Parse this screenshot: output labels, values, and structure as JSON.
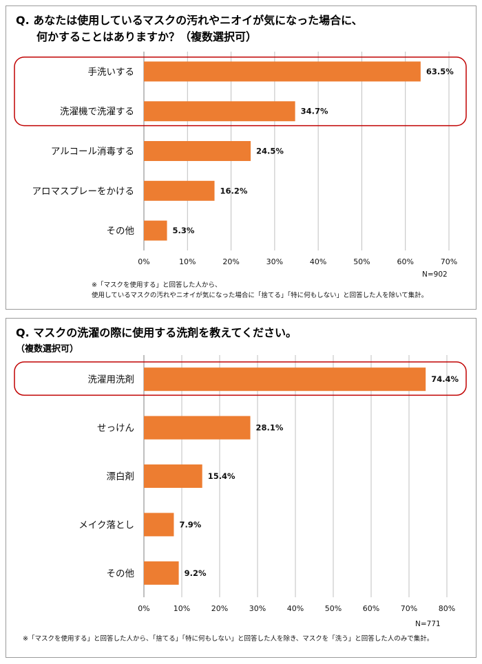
{
  "chart_data": [
    {
      "type": "bar",
      "orientation": "horizontal",
      "title_q": "Q.",
      "title_line1": "あなたは使用しているマスクの汚れやニオイが気になった場合に、",
      "title_line2": "何かすることはありますか？（複数選択可）",
      "categories": [
        "手洗いする",
        "洗濯機で洗濯する",
        "アルコール消毒する",
        "アロマスプレーをかける",
        "その他"
      ],
      "values": [
        63.5,
        34.7,
        24.5,
        16.2,
        5.3
      ],
      "value_labels": [
        "63.5%",
        "34.7%",
        "24.5%",
        "16.2%",
        "5.3%"
      ],
      "xticks": [
        "0%",
        "10%",
        "20%",
        "30%",
        "40%",
        "50%",
        "60%",
        "70%"
      ],
      "xlim": [
        0,
        70
      ],
      "highlighted_categories": [
        "手洗いする",
        "洗濯機で洗濯する"
      ],
      "n_label": "N=902",
      "note_line1": "※「マスクを使用する」と回答した人から、",
      "note_line2": "使用しているマスクの汚れやニオイが気になった場合に「捨てる」「特に何もしない」と回答した人を除いて集計。",
      "grid": true
    },
    {
      "type": "bar",
      "orientation": "horizontal",
      "title_q": "Q.",
      "title_line1": "マスクの洗濯の際に使用する洗剤を教えてください。",
      "title_line2": "（複数選択可）",
      "categories": [
        "洗濯用洗剤",
        "せっけん",
        "漂白剤",
        "メイク落とし",
        "その他"
      ],
      "values": [
        74.4,
        28.1,
        15.4,
        7.9,
        9.2
      ],
      "value_labels": [
        "74.4%",
        "28.1%",
        "15.4%",
        "7.9%",
        "9.2%"
      ],
      "xticks": [
        "0%",
        "10%",
        "20%",
        "30%",
        "40%",
        "50%",
        "60%",
        "70%",
        "80%"
      ],
      "xlim": [
        0,
        80
      ],
      "highlighted_categories": [
        "洗濯用洗剤"
      ],
      "n_label": "N=771",
      "note_line1": "※「マスクを使用する」と回答した人から、「捨てる」「特に何もしない」と回答した人を除き、マスクを「洗う」と回答した人のみで集計。",
      "grid": true
    }
  ],
  "colors": {
    "bar": "#ED7D31",
    "highlight_border": "#C00000",
    "grid": "#BFBFBF",
    "axis": "#7F7F7F"
  }
}
